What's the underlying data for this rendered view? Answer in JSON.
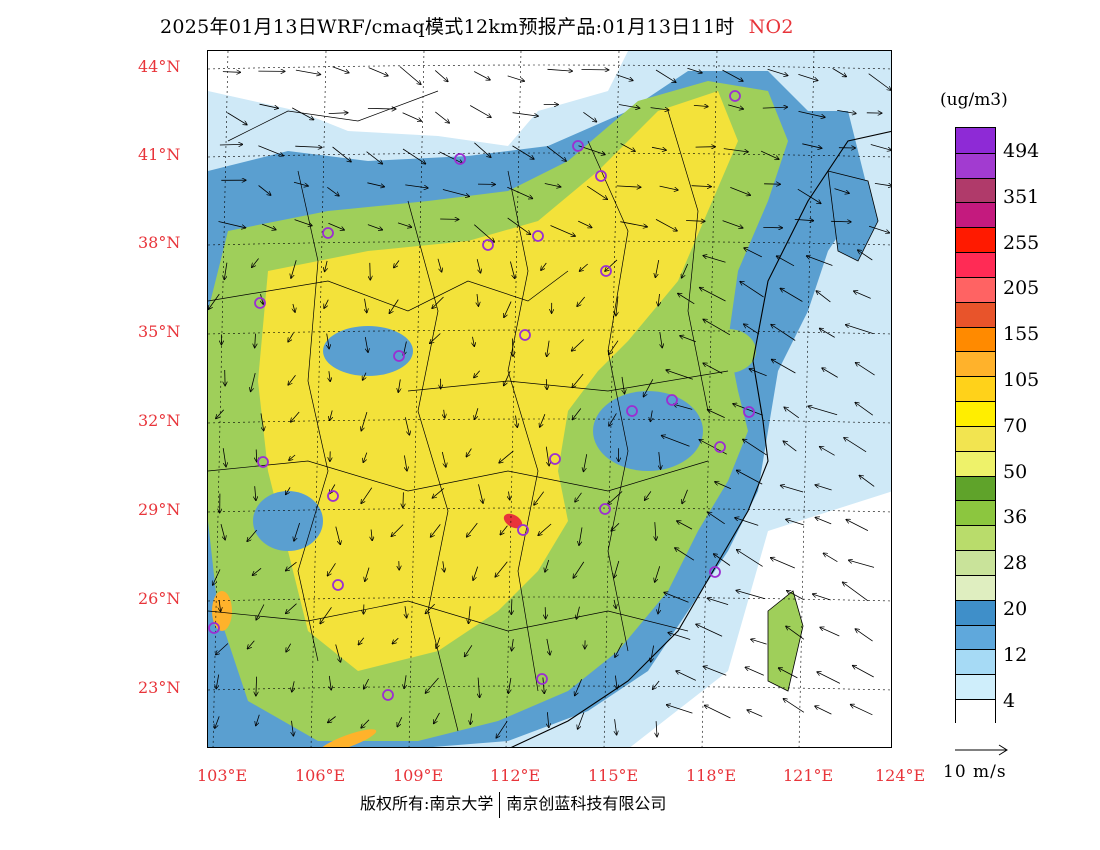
{
  "header": {
    "title": "2025年01月13日WRF/cmaq模式12km预报产品:01月13日11时",
    "species": "NO2"
  },
  "map": {
    "lat_labels": [
      "44°N",
      "41°N",
      "38°N",
      "35°N",
      "32°N",
      "29°N",
      "26°N",
      "23°N"
    ],
    "lon_labels": [
      "103°E",
      "106°E",
      "109°E",
      "112°E",
      "115°E",
      "118°E",
      "121°E",
      "124°E"
    ],
    "colors": {
      "sea": "#cfe9f7",
      "land_low": "#5a9fd0",
      "land_mid": "#9fcf5a",
      "land_high": "#f3e23a",
      "hotspot": "#e8343a",
      "station_marker": "#9b2fd1",
      "label": "#e8343a"
    }
  },
  "legend": {
    "unit": "(ug/m3)",
    "labels": [
      "494",
      "351",
      "255",
      "205",
      "155",
      "105",
      "70",
      "50",
      "36",
      "28",
      "20",
      "12",
      "4"
    ],
    "colors": [
      "#8e2ad6",
      "#a23bd0",
      "#b03a6a",
      "#c41a7e",
      "#ff1a00",
      "#ff2b55",
      "#ff6363",
      "#e8542b",
      "#ff8a00",
      "#ffb22b",
      "#ffd21a",
      "#ffee00",
      "#f2e450",
      "#eef26a",
      "#5fa32a",
      "#8cc63f",
      "#b9dc6b",
      "#c9e39a",
      "#dfeec0",
      "#3f8fc9",
      "#5fa8dc",
      "#a6daf5",
      "#cfeefb",
      "#ffffff"
    ]
  },
  "vector_reference": {
    "label": "10 m/s"
  },
  "footer": {
    "copyright_left": "版权所有:南京大学",
    "copyright_right": "南京创蓝科技有限公司"
  }
}
